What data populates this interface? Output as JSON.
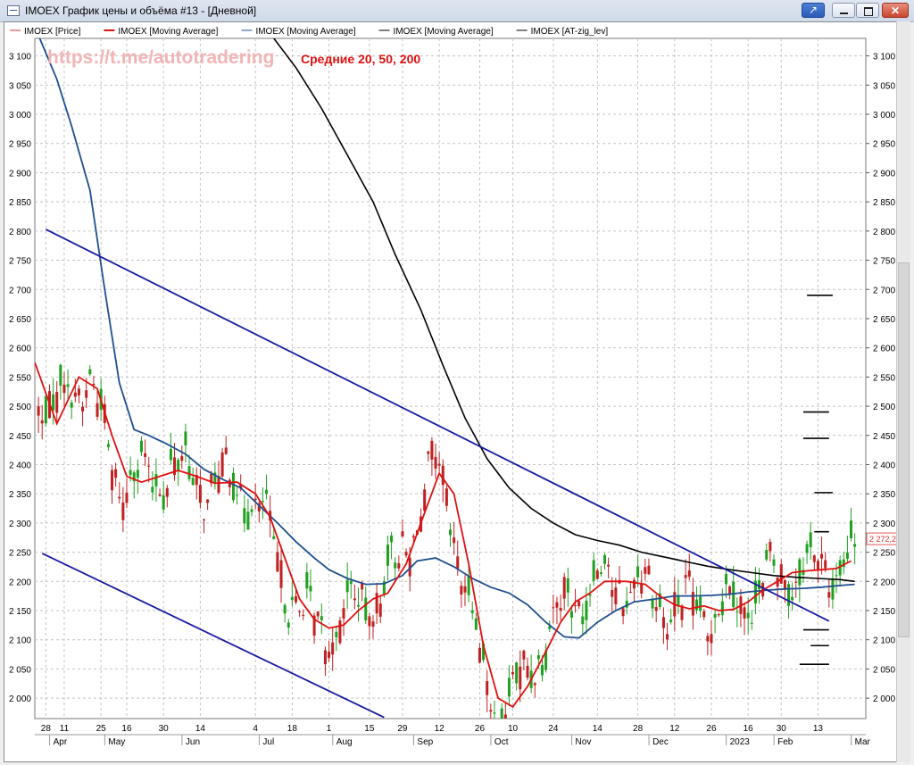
{
  "window": {
    "title": "IMOEX График цены и объёма #13 - [Дневной]",
    "icon": "chart-window-icon"
  },
  "legend": [
    {
      "label": "IMOEX [Price]",
      "color": "#e03030"
    },
    {
      "label": "IMOEX [Moving Average]",
      "color": "#e01010"
    },
    {
      "label": "IMOEX [Moving Average]",
      "color": "#1f4f8f"
    },
    {
      "label": "IMOEX [Moving Average]",
      "color": "#000000"
    },
    {
      "label": "IMOEX [AT-zig_lev]",
      "color": "#000000"
    }
  ],
  "watermark": "https://t.me/autotradering",
  "annotation": "Средние 20, 50, 200",
  "current_price_label": "2 272,2(",
  "chart_data": {
    "type": "candlestick",
    "ylim": [
      1965,
      3130
    ],
    "y_ticks": [
      2000,
      2050,
      2100,
      2150,
      2200,
      2250,
      2300,
      2350,
      2400,
      2450,
      2500,
      2550,
      2600,
      2650,
      2700,
      2750,
      2800,
      2850,
      2900,
      2950,
      3000,
      3050,
      3100
    ],
    "y_tick_labels": [
      "2 000",
      "2 050",
      "2 100",
      "2 150",
      "2 200",
      "2 250",
      "2 300",
      "2 350",
      "2 400",
      "2 450",
      "2 500",
      "2 550",
      "2 600",
      "2 650",
      "2 700",
      "2 750",
      "2 800",
      "2 850",
      "2 900",
      "2 950",
      "3 000",
      "3 050",
      "3 100"
    ],
    "x_range_days": [
      -3,
      155
    ],
    "x_day_ticks": [
      {
        "day": 0,
        "label": "28"
      },
      {
        "day": 5,
        "label": "11"
      },
      {
        "day": 15,
        "label": "25"
      },
      {
        "day": 22,
        "label": "16"
      },
      {
        "day": 32,
        "label": "30"
      },
      {
        "day": 42,
        "label": "14"
      },
      {
        "day": 57,
        "label": "4"
      },
      {
        "day": 67,
        "label": "18"
      },
      {
        "day": 77,
        "label": "1"
      },
      {
        "day": 88,
        "label": "15"
      },
      {
        "day": 97,
        "label": "29"
      },
      {
        "day": 107,
        "label": "12"
      },
      {
        "day": 118,
        "label": "26"
      },
      {
        "day": 127,
        "label": "10"
      },
      {
        "day": 138,
        "label": "24"
      },
      {
        "day": 150,
        "label": "14"
      },
      {
        "day": 161,
        "label": "28"
      },
      {
        "day": 171,
        "label": "12"
      },
      {
        "day": 181,
        "label": "26"
      },
      {
        "day": 191,
        "label": "16"
      },
      {
        "day": 200,
        "label": "30"
      },
      {
        "day": 210,
        "label": "13"
      }
    ],
    "x_month_ticks": [
      {
        "day": 2,
        "label": "Apr"
      },
      {
        "day": 17,
        "label": "May"
      },
      {
        "day": 38,
        "label": "Jun"
      },
      {
        "day": 59,
        "label": "Jul"
      },
      {
        "day": 79,
        "label": "Aug"
      },
      {
        "day": 101,
        "label": "Sep"
      },
      {
        "day": 122,
        "label": "Oct"
      },
      {
        "day": 144,
        "label": "Nov"
      },
      {
        "day": 165,
        "label": "Dec"
      },
      {
        "day": 186,
        "label": "2023"
      },
      {
        "day": 199,
        "label": "Feb"
      },
      {
        "day": 220,
        "label": "Mar"
      }
    ],
    "x_visible_days": [
      -3,
      223
    ],
    "ma20": [
      [
        -3,
        2575
      ],
      [
        3,
        2470
      ],
      [
        9,
        2550
      ],
      [
        14,
        2530
      ],
      [
        18,
        2450
      ],
      [
        22,
        2380
      ],
      [
        26,
        2370
      ],
      [
        31,
        2380
      ],
      [
        36,
        2390
      ],
      [
        41,
        2380
      ],
      [
        46,
        2368
      ],
      [
        52,
        2370
      ],
      [
        57,
        2350
      ],
      [
        61,
        2310
      ],
      [
        65,
        2240
      ],
      [
        69,
        2170
      ],
      [
        73,
        2135
      ],
      [
        77,
        2120
      ],
      [
        81,
        2125
      ],
      [
        85,
        2150
      ],
      [
        89,
        2170
      ],
      [
        93,
        2180
      ],
      [
        98,
        2230
      ],
      [
        102,
        2300
      ],
      [
        107,
        2385
      ],
      [
        111,
        2350
      ],
      [
        115,
        2230
      ],
      [
        119,
        2090
      ],
      [
        123,
        2000
      ],
      [
        127,
        1985
      ],
      [
        131,
        2020
      ],
      [
        136,
        2080
      ],
      [
        140,
        2130
      ],
      [
        144,
        2165
      ],
      [
        148,
        2180
      ],
      [
        152,
        2200
      ],
      [
        158,
        2200
      ],
      [
        163,
        2195
      ],
      [
        167,
        2175
      ],
      [
        171,
        2160
      ],
      [
        175,
        2153
      ],
      [
        179,
        2158
      ],
      [
        183,
        2150
      ],
      [
        187,
        2152
      ],
      [
        191,
        2165
      ],
      [
        195,
        2185
      ],
      [
        199,
        2200
      ],
      [
        203,
        2215
      ],
      [
        207,
        2218
      ],
      [
        211,
        2220
      ],
      [
        215,
        2222
      ],
      [
        219,
        2235
      ]
    ],
    "ma50": [
      [
        -3,
        3150
      ],
      [
        3,
        3060
      ],
      [
        7,
        2980
      ],
      [
        12,
        2870
      ],
      [
        16,
        2700
      ],
      [
        20,
        2540
      ],
      [
        24,
        2460
      ],
      [
        28,
        2450
      ],
      [
        33,
        2435
      ],
      [
        38,
        2418
      ],
      [
        43,
        2392
      ],
      [
        48,
        2375
      ],
      [
        53,
        2360
      ],
      [
        58,
        2330
      ],
      [
        63,
        2300
      ],
      [
        68,
        2268
      ],
      [
        73,
        2240
      ],
      [
        77,
        2220
      ],
      [
        82,
        2205
      ],
      [
        87,
        2195
      ],
      [
        92,
        2196
      ],
      [
        97,
        2210
      ],
      [
        101,
        2235
      ],
      [
        106,
        2240
      ],
      [
        111,
        2225
      ],
      [
        116,
        2205
      ],
      [
        121,
        2190
      ],
      [
        126,
        2180
      ],
      [
        131,
        2160
      ],
      [
        136,
        2130
      ],
      [
        141,
        2105
      ],
      [
        145,
        2103
      ],
      [
        150,
        2130
      ],
      [
        155,
        2150
      ],
      [
        160,
        2165
      ],
      [
        166,
        2170
      ],
      [
        171,
        2175
      ],
      [
        176,
        2175
      ],
      [
        181,
        2176
      ],
      [
        186,
        2178
      ],
      [
        191,
        2182
      ],
      [
        196,
        2185
      ],
      [
        201,
        2187
      ],
      [
        206,
        2188
      ],
      [
        211,
        2190
      ],
      [
        216,
        2193
      ],
      [
        220,
        2195
      ]
    ],
    "ma200": [
      [
        62,
        3130
      ],
      [
        68,
        3080
      ],
      [
        75,
        3010
      ],
      [
        82,
        2930
      ],
      [
        89,
        2850
      ],
      [
        95,
        2760
      ],
      [
        102,
        2665
      ],
      [
        108,
        2570
      ],
      [
        114,
        2480
      ],
      [
        120,
        2410
      ],
      [
        126,
        2360
      ],
      [
        132,
        2325
      ],
      [
        138,
        2300
      ],
      [
        144,
        2280
      ],
      [
        150,
        2270
      ],
      [
        156,
        2262
      ],
      [
        162,
        2250
      ],
      [
        168,
        2242
      ],
      [
        174,
        2234
      ],
      [
        180,
        2226
      ],
      [
        186,
        2220
      ],
      [
        192,
        2215
      ],
      [
        198,
        2210
      ],
      [
        204,
        2207
      ],
      [
        210,
        2205
      ],
      [
        216,
        2203
      ],
      [
        220,
        2200
      ]
    ],
    "trend_lines": [
      {
        "name": "upper",
        "from": [
          0,
          2803
        ],
        "to": [
          213,
          2132
        ],
        "color": "#1a1aa0"
      },
      {
        "name": "lower",
        "from": [
          -1,
          2248
        ],
        "to": [
          92,
          1967
        ],
        "color": "#1a1aa0"
      }
    ],
    "zig_levels": [
      {
        "day": [
          207,
          214
        ],
        "price": 2690
      },
      {
        "day": [
          206,
          213
        ],
        "price": 2490
      },
      {
        "day": [
          206,
          213
        ],
        "price": 2445
      },
      {
        "day": [
          209,
          214
        ],
        "price": 2352
      },
      {
        "day": [
          209,
          213
        ],
        "price": 2285
      },
      {
        "day": [
          206,
          213
        ],
        "price": 2117
      },
      {
        "day": [
          208,
          213
        ],
        "price": 2090
      },
      {
        "day": [
          205,
          213
        ],
        "price": 2058
      }
    ],
    "last_price": 2272.2
  }
}
